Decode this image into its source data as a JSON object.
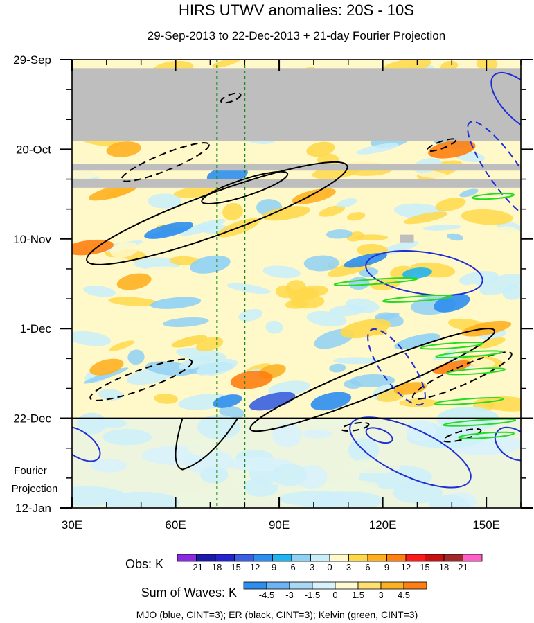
{
  "chart_data": {
    "type": "heatmap",
    "title": "HIRS UTWV anomalies: 20S - 10S",
    "subtitle": "29-Sep-2013 to 22-Dec-2013 + 21-day Fourier Projection",
    "x_axis": {
      "range": [
        30,
        160
      ],
      "tick_values": [
        30,
        60,
        90,
        120,
        150
      ],
      "tick_labels": [
        "30E",
        "60E",
        "90E",
        "120E",
        "150E"
      ],
      "minor_step": 10
    },
    "y_axis": {
      "range_days": [
        0,
        105
      ],
      "tick_days": [
        0,
        21,
        42,
        63,
        84,
        105
      ],
      "tick_labels": [
        "29-Sep",
        "20-Oct",
        "10-Nov",
        "1-Dec",
        "22-Dec",
        "12-Jan"
      ],
      "minor_step_days": 7,
      "direction": "time increases downward"
    },
    "projection_start_day": 84,
    "projection_label": [
      "Fourier",
      "Projection"
    ],
    "reference_longitudes": [
      72,
      80
    ],
    "missing_data_bands_days": [
      [
        2,
        19
      ],
      [
        24.5,
        26
      ],
      [
        28,
        30
      ]
    ],
    "obs_colorbar": {
      "label": "Obs: K",
      "levels": [
        "-21",
        "-18",
        "-15",
        "-12",
        "-9",
        "-6",
        "-3",
        "0",
        "3",
        "6",
        "9",
        "12",
        "15",
        "18",
        "21"
      ],
      "colors": [
        "#8a2be2",
        "#1a1aa8",
        "#2424cc",
        "#3a5fe0",
        "#2e8ef0",
        "#22b4f0",
        "#8fd0f5",
        "#c8eefa",
        "#fff8c8",
        "#ffd84a",
        "#ffb020",
        "#ff8010",
        "#ff1a1a",
        "#c81010",
        "#a02828",
        "#ff60c8"
      ]
    },
    "waves_colorbar": {
      "label": "Sum of Waves: K",
      "levels": [
        "-4.5",
        "-3",
        "-1.5",
        "0",
        "1.5",
        "3",
        "4.5"
      ],
      "colors": [
        "#2e8ef0",
        "#6cb4f5",
        "#a8d8f5",
        "#d8f2fb",
        "#fffad0",
        "#ffe070",
        "#ffb020",
        "#ff8010"
      ]
    },
    "contour_legend": "MJO (blue, CINT=3); ER (black, CINT=3); Kelvin (green, CINT=3)",
    "contour_series": [
      {
        "name": "MJO",
        "color": "#1f2fd6",
        "cint": 3
      },
      {
        "name": "ER",
        "color": "#000000",
        "cint": 3
      },
      {
        "name": "Kelvin",
        "color": "#22dd22",
        "cint": 3
      }
    ]
  }
}
